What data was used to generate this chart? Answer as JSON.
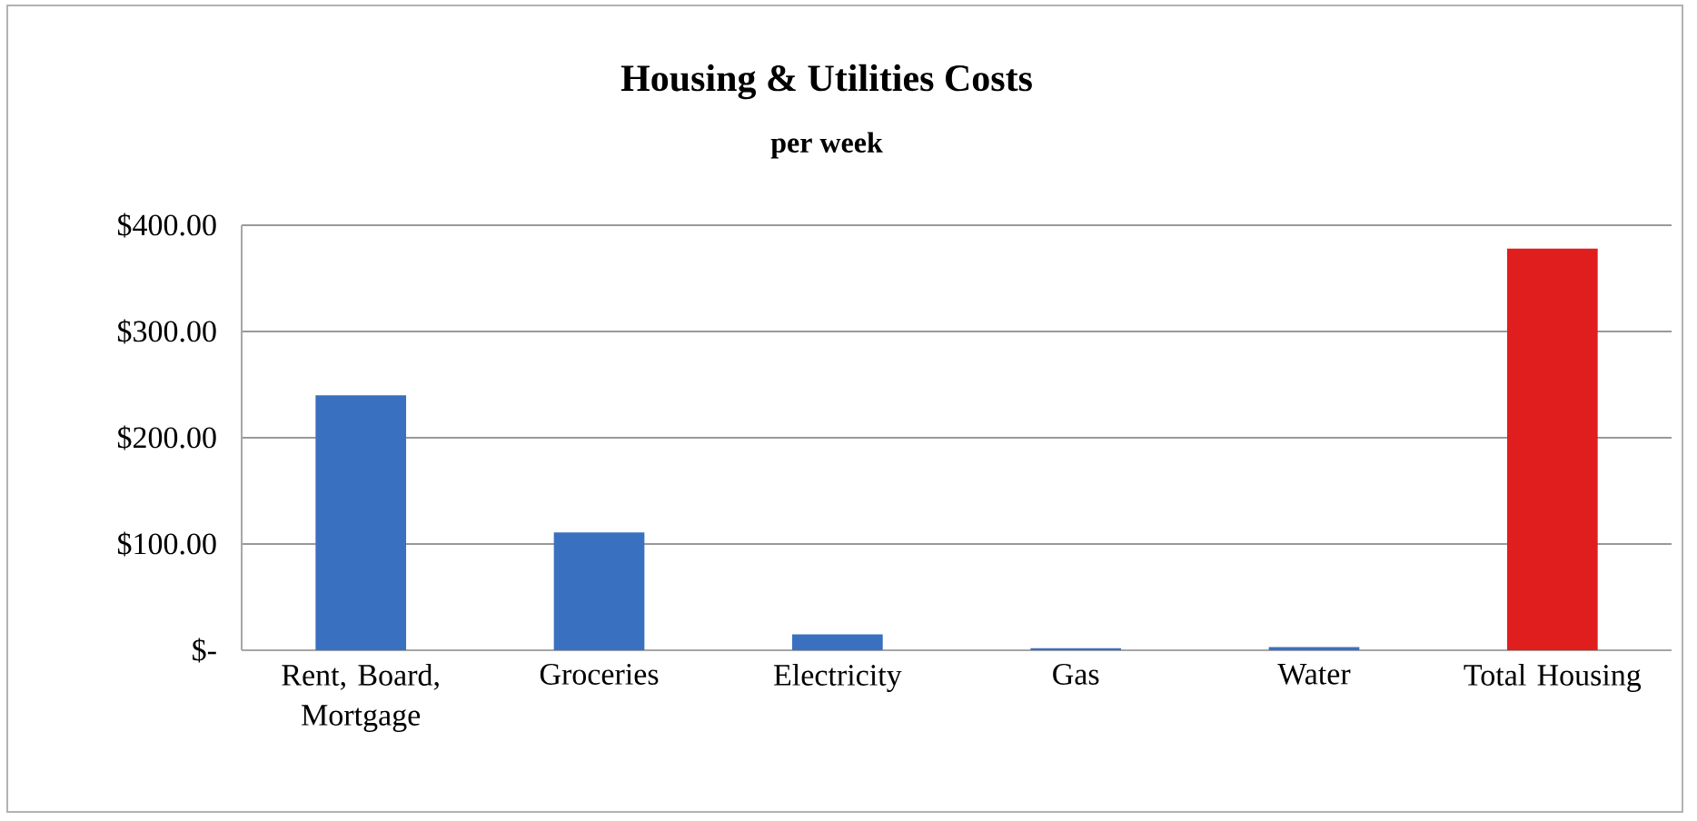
{
  "chart_data": {
    "type": "bar",
    "title": "Housing & Utilities Costs",
    "subtitle": "per week",
    "categories": [
      "Rent, Board, Mortgage",
      "Groceries",
      "Electricity",
      "Gas",
      "Water",
      "Total Housing"
    ],
    "values": [
      240,
      111,
      15,
      2,
      3,
      378
    ],
    "colors": [
      "#3a70c0",
      "#3a70c0",
      "#3a70c0",
      "#3a70c0",
      "#3a70c0",
      "#e01e1e"
    ],
    "ylim": [
      0,
      400
    ],
    "yticks": [
      {
        "value": 0,
        "label": "$-"
      },
      {
        "value": 100,
        "label": "$100.00"
      },
      {
        "value": 200,
        "label": "$200.00"
      },
      {
        "value": 300,
        "label": "$300.00"
      },
      {
        "value": 400,
        "label": "$400.00"
      }
    ],
    "grid": "y"
  }
}
